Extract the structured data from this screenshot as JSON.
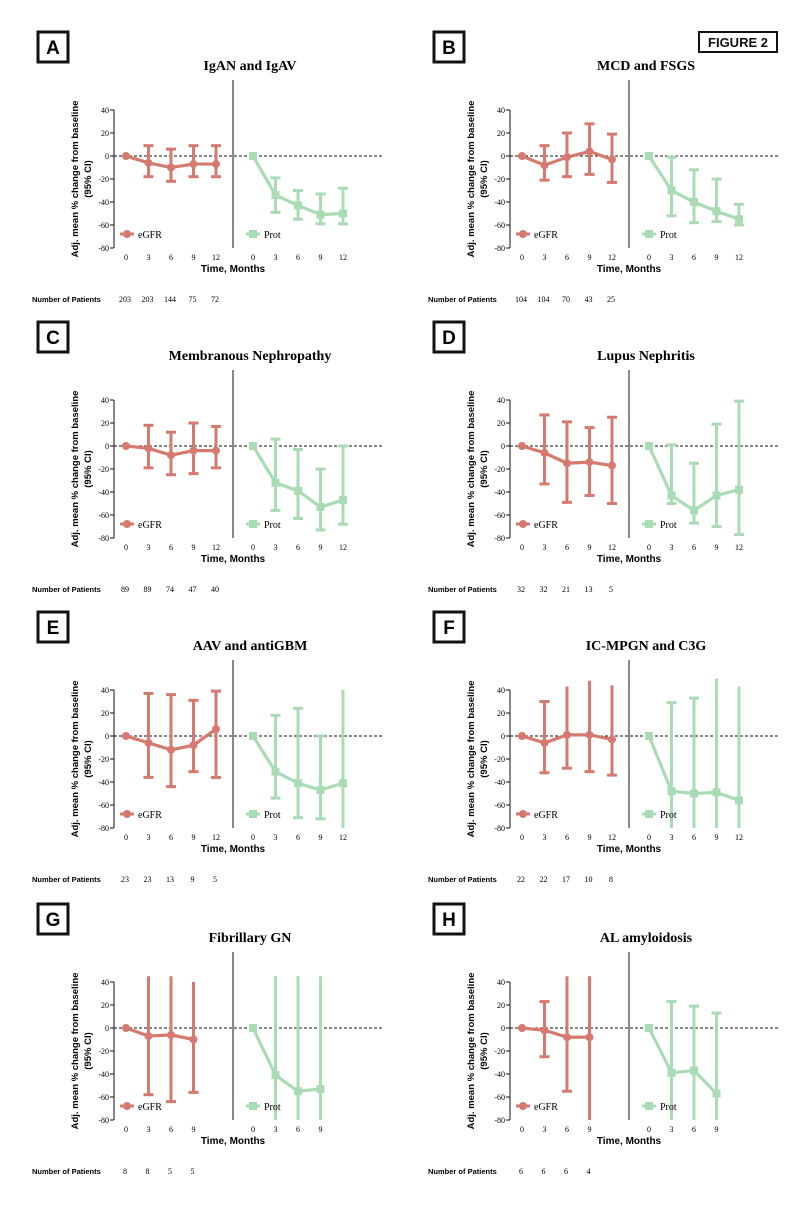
{
  "figure_label": "FIGURE 2",
  "colors": {
    "egfr": "#d67a70",
    "prot": "#a9dcb5",
    "axis": "#111111"
  },
  "chart_data": [
    {
      "type": "line",
      "panel": "A",
      "title": "IgAN and IgAV",
      "xlabel": "Time, Months",
      "ylabel": "Adj. mean % change from baseline\n(95% CI)",
      "ylim": [
        -80,
        40
      ],
      "yticks": [
        40,
        20,
        0,
        -20,
        -40,
        -60,
        -80
      ],
      "reference_line": 0,
      "legend": [
        "eGFR",
        "Prot"
      ],
      "legend_position": "bottom-left of each half",
      "patients_label": "Number of Patients",
      "patients": [
        "203",
        "203",
        "144",
        "75",
        "72"
      ],
      "series": [
        {
          "name": "eGFR",
          "x": [
            0,
            3,
            6,
            9,
            12
          ],
          "y": [
            0,
            -6,
            -10,
            -7,
            -7
          ],
          "lo": [
            0,
            -18,
            -22,
            -18,
            -18
          ],
          "hi": [
            0,
            9,
            6,
            9,
            9
          ]
        },
        {
          "name": "Prot",
          "x": [
            0,
            3,
            6,
            9,
            12
          ],
          "y": [
            0,
            -34,
            -43,
            -51,
            -50
          ],
          "lo": [
            0,
            -49,
            -55,
            -59,
            -59
          ],
          "hi": [
            0,
            -19,
            -30,
            -33,
            -28
          ]
        }
      ]
    },
    {
      "type": "line",
      "panel": "B",
      "title": "MCD and FSGS",
      "xlabel": "Time, Months",
      "ylabel": "Adj. mean % change from baseline\n(95% CI)",
      "ylim": [
        -80,
        40
      ],
      "yticks": [
        40,
        20,
        0,
        -20,
        -40,
        -60,
        -80
      ],
      "reference_line": 0,
      "legend": [
        "eGFR",
        "Prot"
      ],
      "patients_label": "Number of Patients",
      "patients": [
        "104",
        "104",
        "70",
        "43",
        "25"
      ],
      "series": [
        {
          "name": "eGFR",
          "x": [
            0,
            3,
            6,
            9,
            12
          ],
          "y": [
            0,
            -8,
            -1,
            4,
            -3
          ],
          "lo": [
            0,
            -21,
            -18,
            -16,
            -23
          ],
          "hi": [
            0,
            9,
            20,
            28,
            19
          ]
        },
        {
          "name": "Prot",
          "x": [
            0,
            3,
            6,
            9,
            12
          ],
          "y": [
            0,
            -30,
            -40,
            -48,
            -55
          ],
          "lo": [
            0,
            -52,
            -58,
            -57,
            -60
          ],
          "hi": [
            0,
            -1,
            -12,
            -20,
            -42
          ]
        }
      ]
    },
    {
      "type": "line",
      "panel": "C",
      "title": "Membranous Nephropathy",
      "xlabel": "Time, Months",
      "ylabel": "Adj. mean % change from baseline\n(95% CI)",
      "ylim": [
        -80,
        40
      ],
      "yticks": [
        40,
        20,
        0,
        -20,
        -40,
        -60,
        -80
      ],
      "reference_line": 0,
      "legend": [
        "eGFR",
        "Prot"
      ],
      "patients_label": "Number of Patients",
      "patients": [
        "89",
        "89",
        "74",
        "47",
        "40"
      ],
      "series": [
        {
          "name": "eGFR",
          "x": [
            0,
            3,
            6,
            9,
            12
          ],
          "y": [
            0,
            -2,
            -8,
            -4,
            -4
          ],
          "lo": [
            0,
            -19,
            -25,
            -24,
            -19
          ],
          "hi": [
            0,
            18,
            12,
            20,
            17
          ]
        },
        {
          "name": "Prot",
          "x": [
            0,
            3,
            6,
            9,
            12
          ],
          "y": [
            0,
            -32,
            -39,
            -53,
            -47
          ],
          "lo": [
            0,
            -56,
            -63,
            -73,
            -68
          ],
          "hi": [
            0,
            6,
            -3,
            -20,
            0
          ]
        }
      ]
    },
    {
      "type": "line",
      "panel": "D",
      "title": "Lupus Nephritis",
      "xlabel": "Time, Months",
      "ylabel": "Adj. mean % change from baseline\n(95% CI)",
      "ylim": [
        -80,
        40
      ],
      "yticks": [
        40,
        20,
        0,
        -20,
        -40,
        -60,
        -80
      ],
      "reference_line": 0,
      "legend": [
        "eGFR",
        "Prot"
      ],
      "patients_label": "Number of Patients",
      "patients": [
        "32",
        "32",
        "21",
        "13",
        "5"
      ],
      "series": [
        {
          "name": "eGFR",
          "x": [
            0,
            3,
            6,
            9,
            12
          ],
          "y": [
            0,
            -6,
            -15,
            -14,
            -17
          ],
          "lo": [
            0,
            -33,
            -49,
            -43,
            -50
          ],
          "hi": [
            0,
            27,
            21,
            16,
            25
          ]
        },
        {
          "name": "Prot",
          "x": [
            0,
            3,
            6,
            9,
            12
          ],
          "y": [
            0,
            -43,
            -56,
            -43,
            -38
          ],
          "lo": [
            0,
            -50,
            -67,
            -70,
            -77
          ],
          "hi": [
            0,
            1,
            -15,
            19,
            39
          ]
        }
      ]
    },
    {
      "type": "line",
      "panel": "E",
      "title": "AAV and antiGBM",
      "xlabel": "Time, Months",
      "ylabel": "Adj. mean % change from baseline\n(95% CI)",
      "ylim": [
        -80,
        40
      ],
      "yticks": [
        40,
        20,
        0,
        -20,
        -40,
        -60,
        -80
      ],
      "reference_line": 0,
      "legend": [
        "eGFR",
        "Prot"
      ],
      "patients_label": "Number of Patients",
      "patients": [
        "23",
        "23",
        "13",
        "9",
        "5"
      ],
      "series": [
        {
          "name": "eGFR",
          "x": [
            0,
            3,
            6,
            9,
            12
          ],
          "y": [
            0,
            -6,
            -12,
            -8,
            6
          ],
          "lo": [
            0,
            -36,
            -44,
            -31,
            -36
          ],
          "hi": [
            0,
            37,
            36,
            31,
            39
          ]
        },
        {
          "name": "Prot",
          "x": [
            0,
            3,
            6,
            9,
            12
          ],
          "y": [
            0,
            -31,
            -41,
            -47,
            -41
          ],
          "lo": [
            0,
            -54,
            -71,
            -72,
            -80
          ],
          "hi": [
            0,
            18,
            24,
            0,
            40
          ]
        }
      ]
    },
    {
      "type": "line",
      "panel": "F",
      "title": "IC-MPGN and C3G",
      "xlabel": "Time, Months",
      "ylabel": "Adj. mean % change from baseline\n(95% CI)",
      "ylim": [
        -80,
        40
      ],
      "yticks": [
        40,
        20,
        0,
        -20,
        -40,
        -60,
        -80
      ],
      "reference_line": 0,
      "legend": [
        "eGFR",
        "Prot"
      ],
      "patients_label": "Number of Patients",
      "patients": [
        "22",
        "22",
        "17",
        "10",
        "8"
      ],
      "series": [
        {
          "name": "eGFR",
          "x": [
            0,
            3,
            6,
            9,
            12
          ],
          "y": [
            0,
            -6,
            1,
            1,
            -3
          ],
          "lo": [
            0,
            -32,
            -28,
            -31,
            -34
          ],
          "hi": [
            0,
            30,
            43,
            48,
            44
          ]
        },
        {
          "name": "Prot",
          "x": [
            0,
            3,
            6,
            9,
            12
          ],
          "y": [
            0,
            -48,
            -50,
            -49,
            -56
          ],
          "lo": [
            0,
            -80,
            -80,
            -80,
            -80
          ],
          "hi": [
            0,
            29,
            33,
            50,
            43
          ]
        }
      ]
    },
    {
      "type": "line",
      "panel": "G",
      "title": "Fibrillary GN",
      "xlabel": "Time, Months",
      "ylabel": "Adj. mean % change from baseline\n(95% CI)",
      "ylim": [
        -80,
        40
      ],
      "yticks": [
        40,
        20,
        0,
        -20,
        -40,
        -60,
        -80
      ],
      "reference_line": 0,
      "legend": [
        "eGFR",
        "Prot"
      ],
      "patients_label": "Number of Patients",
      "patients": [
        "8",
        "8",
        "5",
        "5"
      ],
      "series": [
        {
          "name": "eGFR",
          "x": [
            0,
            3,
            6,
            9
          ],
          "y": [
            0,
            -7,
            -6,
            -10
          ],
          "lo": [
            0,
            -58,
            -64,
            -56
          ],
          "hi": [
            0,
            45,
            45,
            40
          ]
        },
        {
          "name": "Prot",
          "x": [
            0,
            3,
            6,
            9
          ],
          "y": [
            0,
            -41,
            -55,
            -53
          ],
          "lo": [
            0,
            -80,
            -80,
            -80
          ],
          "hi": [
            0,
            45,
            45,
            45
          ]
        }
      ]
    },
    {
      "type": "line",
      "panel": "H",
      "title": "AL amyloidosis",
      "xlabel": "Time, Months",
      "ylabel": "Adj. mean % change from baseline\n(95% CI)",
      "ylim": [
        -80,
        40
      ],
      "yticks": [
        40,
        20,
        0,
        -20,
        -40,
        -60,
        -80
      ],
      "reference_line": 0,
      "legend": [
        "eGFR",
        "Prot"
      ],
      "patients_label": "Number of Patients",
      "patients": [
        "6",
        "6",
        "6",
        "4"
      ],
      "series": [
        {
          "name": "eGFR",
          "x": [
            0,
            3,
            6,
            9
          ],
          "y": [
            0,
            -2,
            -8,
            -8
          ],
          "lo": [
            0,
            -25,
            -55,
            -80
          ],
          "hi": [
            0,
            23,
            45,
            45
          ]
        },
        {
          "name": "Prot",
          "x": [
            0,
            3,
            6,
            9
          ],
          "y": [
            0,
            -39,
            -37,
            -57
          ],
          "lo": [
            0,
            -80,
            -80,
            -80
          ],
          "hi": [
            0,
            23,
            19,
            13
          ]
        }
      ]
    }
  ]
}
